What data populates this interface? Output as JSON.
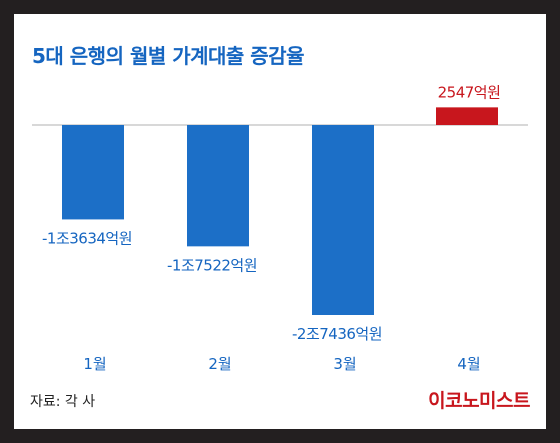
{
  "title": "5대 은행의 월별 가계대출 증감율",
  "source": "자료: 각 사",
  "logo": "이코노미스트",
  "colors": {
    "negative_bar": "#1c6fc7",
    "positive_bar": "#c8161d",
    "negative_label": "#1565c0",
    "positive_label": "#c8161d",
    "baseline": "#b0b0b0",
    "axis_label": "#1565c0"
  },
  "chart_data": {
    "type": "bar",
    "title": "5대 은행의 월별 가계대출 증감율",
    "categories": [
      "1월",
      "2월",
      "3월",
      "4월"
    ],
    "values": [
      -13634,
      -17522,
      -27436,
      2547
    ],
    "unit": "억원",
    "data_labels": [
      "-1조3634억원",
      "-1조7522억원",
      "-2조7436억원",
      "2547억원"
    ],
    "ylim": [
      -30000,
      5000
    ],
    "grid": false,
    "legend": "none"
  }
}
